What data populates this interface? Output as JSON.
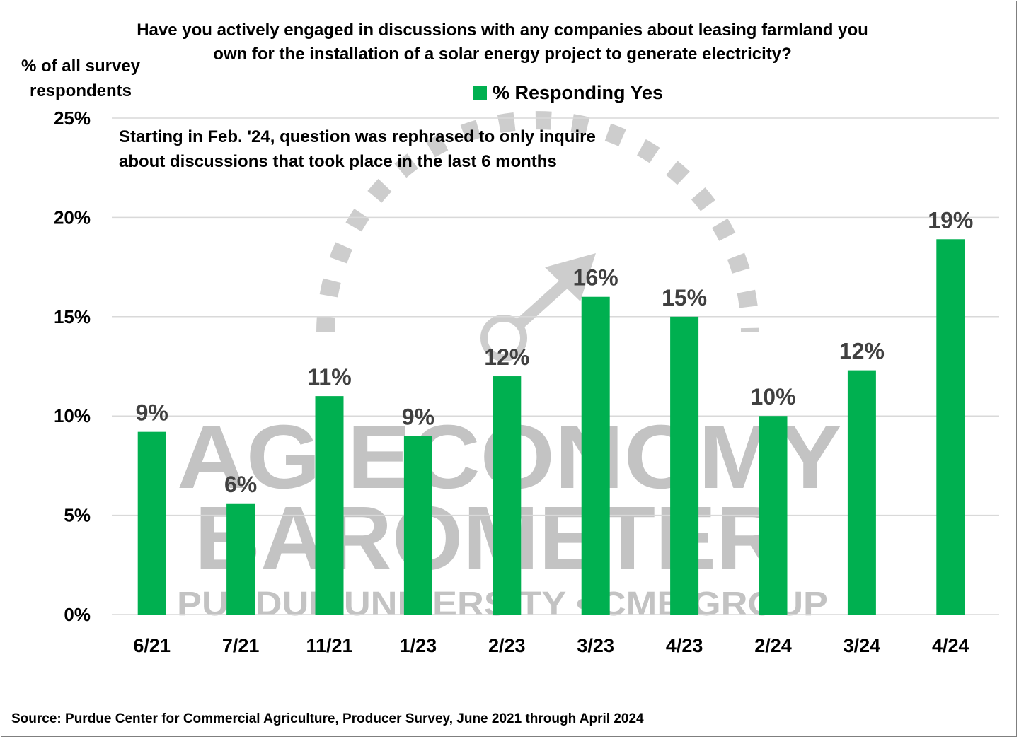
{
  "chart_data": {
    "type": "bar",
    "title": "Have you actively engaged in discussions with any companies about leasing farmland you own for the installation of a solar energy project to generate electricity?",
    "ylabel": "% of all survey respondents",
    "legend": [
      "% Responding Yes"
    ],
    "legend_position": "top-center",
    "categories": [
      "6/21",
      "7/21",
      "11/21",
      "1/23",
      "2/23",
      "3/23",
      "4/23",
      "2/24",
      "3/24",
      "4/24"
    ],
    "series": [
      {
        "name": "% Responding Yes",
        "values": [
          9.2,
          5.6,
          11,
          9,
          12,
          16,
          15,
          10,
          12.3,
          18.9
        ],
        "data_labels": [
          "9%",
          "6%",
          "11%",
          "9%",
          "12%",
          "16%",
          "15%",
          "10%",
          "12%",
          "19%"
        ]
      }
    ],
    "ylim": [
      0,
      25
    ],
    "yticks": [
      0,
      5,
      10,
      15,
      20,
      25
    ],
    "ytick_labels": [
      "0%",
      "5%",
      "10%",
      "15%",
      "20%",
      "25%"
    ],
    "grid": true,
    "annotation": "Starting in Feb. '24, question was rephrased to only inquire about discussions that took place in the last 6 months",
    "source": "Source: Purdue Center for Commercial Agriculture, Producer Survey, June 2021 through April 2024"
  },
  "watermark": {
    "line1": "AG ECONOMY",
    "line2": "BAROMETER",
    "line3": "PURDUE UNIVERSITY  •  CME GROUP"
  },
  "colors": {
    "bar": "#00b050",
    "grid": "#d9d9d9",
    "label": "#404040",
    "watermark": "#bdbdbd"
  }
}
